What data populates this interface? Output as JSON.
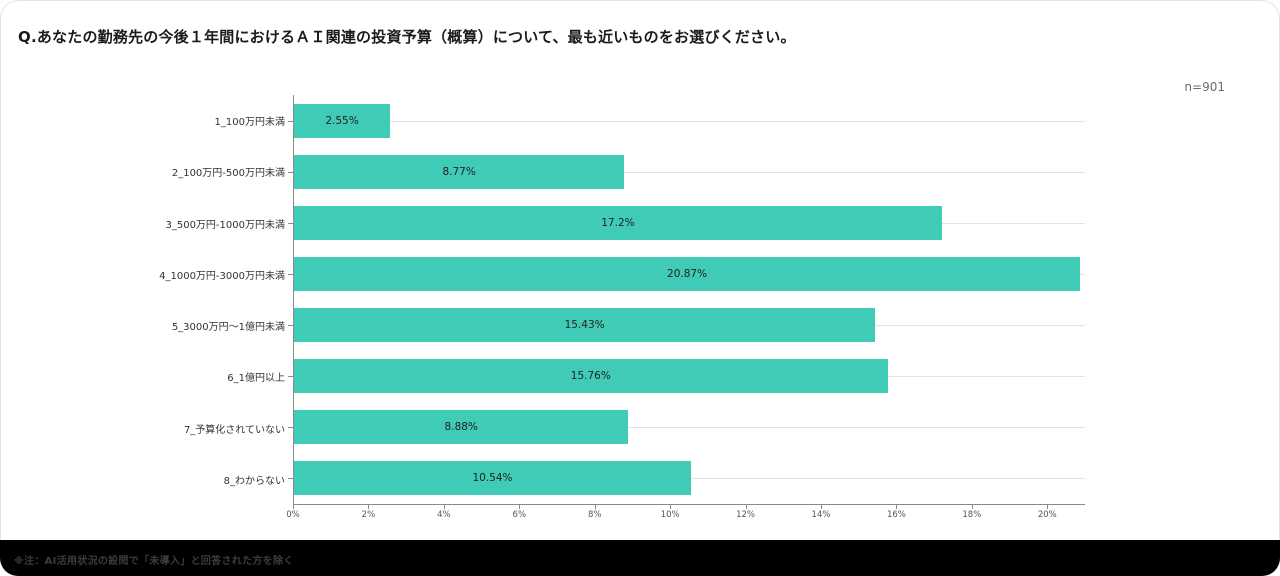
{
  "page": {
    "title": "Q.あなたの勤務先の今後１年間におけるＡＩ関連の投資予算（概算）について、最も近いものをお選びください。",
    "sample_size": "n=901",
    "footnote": "※注：AI活用状況の設問で「未導入」と回答された方を除く"
  },
  "chart_data": {
    "type": "bar",
    "orientation": "horizontal",
    "title": "Q.あなたの勤務先の今後１年間におけるＡＩ関連の投資予算（概算）について、最も近いものをお選びください。",
    "categories": [
      "1_100万円未満",
      "2_100万円-500万円未満",
      "3_500万円-1000万円未満",
      "4_1000万円-3000万円未満",
      "5_3000万円〜1億円未満",
      "6_1億円以上",
      "7_予算化されていない",
      "8_わからない"
    ],
    "values": [
      2.55,
      8.77,
      17.2,
      20.87,
      15.43,
      15.76,
      8.88,
      10.54
    ],
    "value_labels": [
      "2.55%",
      "8.77%",
      "17.2%",
      "20.87%",
      "15.43%",
      "15.76%",
      "8.88%",
      "10.54%"
    ],
    "xlabel": "",
    "ylabel": "",
    "xlim": [
      0,
      21
    ],
    "x_ticks": [
      "0%",
      "2%",
      "4%",
      "6%",
      "8%",
      "10%",
      "12%",
      "14%",
      "16%",
      "18%",
      "20%"
    ],
    "x_tick_values": [
      0,
      2,
      4,
      6,
      8,
      10,
      12,
      14,
      16,
      18,
      20
    ],
    "grid": "horizontal",
    "legend": "none",
    "bar_color": "#3fcbb6",
    "label_color": "#222222",
    "sample_size": "n=901"
  }
}
